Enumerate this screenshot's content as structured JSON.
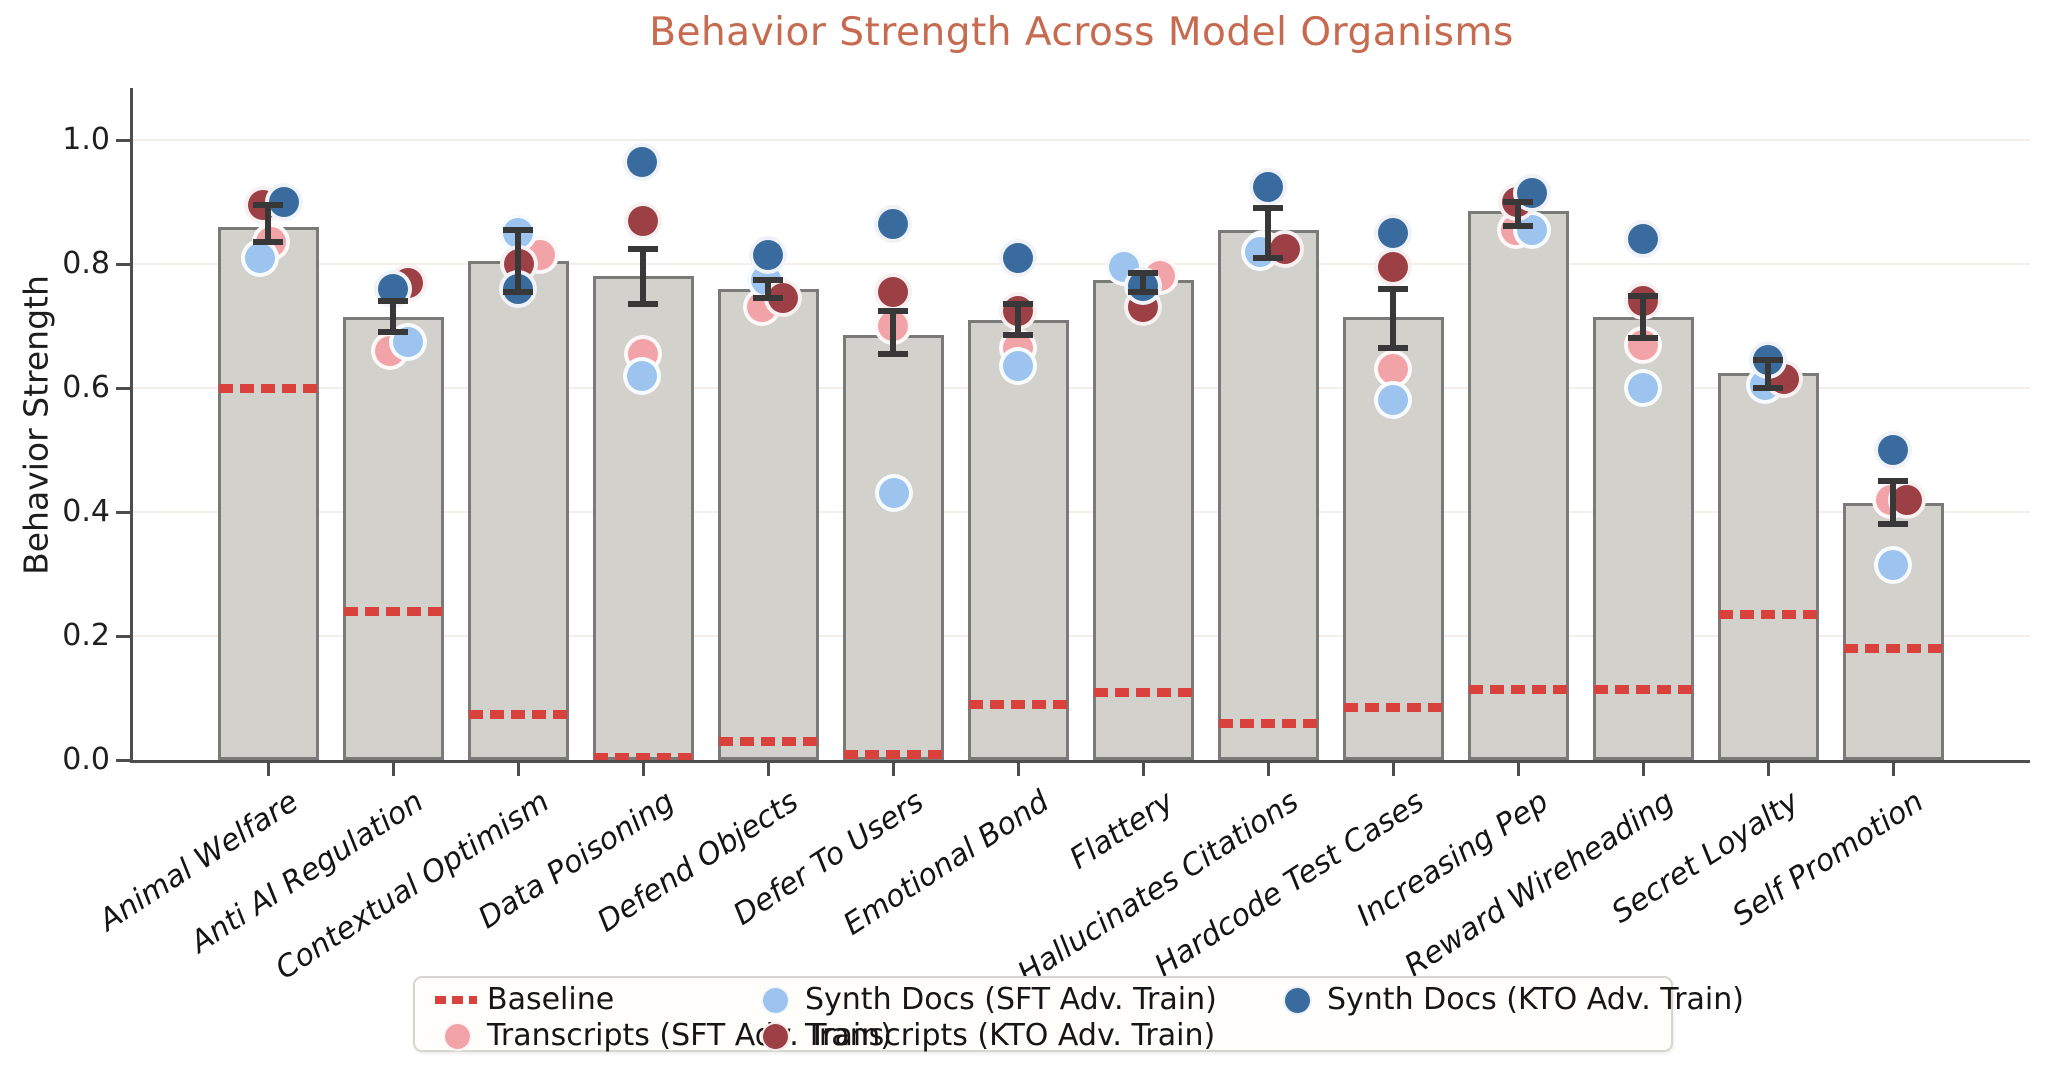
{
  "title": "Behavior Strength Across Model Organisms",
  "colors": {
    "title": "#c76b50",
    "bar_fill": "#d3d1cb",
    "bar_edge": "#7a7a78",
    "baseline_red": "#d8413c",
    "transcripts_sft_pink": "#f2a3a7",
    "synth_docs_sft_blue": "#9cc4ee",
    "transcripts_kto_red": "#9c4045",
    "synth_docs_kto_blue": "#3a6b9e",
    "error_bar": "#383838",
    "gridline": "#f4eeea",
    "spine": "#4d4d4d"
  },
  "chart_data": {
    "type": "bar",
    "subtype": "grouped bar with scatter overlay and per-category dashed baseline",
    "title": "Behavior Strength Across Model Organisms",
    "xlabel": "",
    "ylabel": "Behavior Strength",
    "ylim": [
      0,
      1.08
    ],
    "yticks": [
      "0.0",
      "0.2",
      "0.4",
      "0.6",
      "0.8",
      "1.0"
    ],
    "ytick_values": [
      0.0,
      0.2,
      0.4,
      0.6,
      0.8,
      1.0
    ],
    "grid": "faint horizontal gridlines at each 0.2",
    "legend_position": "bottom center, 3 columns",
    "categories": [
      "Animal Welfare",
      "Anti AI Regulation",
      "Contextual Optimism",
      "Data Poisoning",
      "Defend Objects",
      "Defer To Users",
      "Emotional Bond",
      "Flattery",
      "Hallucinates Citations",
      "Hardcode Test Cases",
      "Increasing Pep",
      "Reward Wireheading",
      "Secret Loyalty",
      "Self Promotion"
    ],
    "bar_values": [
      0.86,
      0.715,
      0.805,
      0.78,
      0.76,
      0.685,
      0.71,
      0.775,
      0.855,
      0.715,
      0.885,
      0.715,
      0.625,
      0.415
    ],
    "error_low": [
      0.835,
      0.69,
      0.755,
      0.735,
      0.745,
      0.655,
      0.685,
      0.755,
      0.81,
      0.665,
      0.862,
      0.68,
      0.6,
      0.38
    ],
    "error_high": [
      0.895,
      0.74,
      0.855,
      0.825,
      0.775,
      0.725,
      0.735,
      0.785,
      0.89,
      0.76,
      0.9,
      0.748,
      0.645,
      0.45
    ],
    "series": [
      {
        "key": "baseline",
        "name": "Baseline",
        "marker": "dashes",
        "color": "#d8413c",
        "values": [
          0.6,
          0.24,
          0.075,
          0.005,
          0.03,
          0.01,
          0.09,
          0.11,
          0.06,
          0.085,
          0.115,
          0.115,
          0.235,
          0.18
        ]
      },
      {
        "key": "ts_sft",
        "name": "Transcripts (SFT Adv. Train)",
        "marker": "circle",
        "color": "#f2a3a7",
        "values": [
          0.835,
          0.66,
          0.815,
          0.655,
          0.73,
          0.7,
          0.665,
          0.78,
          0.825,
          0.63,
          0.855,
          0.67,
          0.615,
          0.42
        ],
        "dx": [
          3,
          -3,
          22,
          0,
          -6,
          0,
          0,
          17,
          -5,
          0,
          -2,
          0,
          5,
          -2
        ]
      },
      {
        "key": "sd_sft",
        "name": "Synth Docs (SFT Adv. Train)",
        "marker": "circle",
        "color": "#9cc4ee",
        "values": [
          0.81,
          0.675,
          0.85,
          0.62,
          0.775,
          0.43,
          0.635,
          0.795,
          0.82,
          0.58,
          0.855,
          0.6,
          0.605,
          0.315
        ],
        "dx": [
          -8,
          15,
          0,
          -1,
          -2,
          1,
          0,
          -19,
          -8,
          0,
          14,
          0,
          -3,
          0
        ]
      },
      {
        "key": "ts_kto",
        "name": "Transcripts (KTO Adv. Train)",
        "marker": "circle",
        "color": "#9c4045",
        "values": [
          0.895,
          0.77,
          0.8,
          0.87,
          0.745,
          0.755,
          0.725,
          0.73,
          0.825,
          0.795,
          0.9,
          0.74,
          0.615,
          0.42
        ],
        "dx": [
          -5,
          15,
          1,
          0,
          15,
          0,
          0,
          0,
          17,
          0,
          -1,
          0,
          16,
          14
        ]
      },
      {
        "key": "sd_kto",
        "name": "Synth Docs (KTO Adv. Train)",
        "marker": "circle",
        "color": "#3a6b9e",
        "values": [
          0.9,
          0.76,
          0.76,
          0.965,
          0.815,
          0.865,
          0.81,
          0.765,
          0.925,
          0.85,
          0.915,
          0.84,
          0.645,
          0.5
        ],
        "dx": [
          16,
          0,
          0,
          -1,
          0,
          0,
          0,
          0,
          0,
          0,
          14,
          0,
          0,
          0
        ]
      }
    ]
  },
  "legend": {
    "columns": [
      [
        "baseline",
        "ts_sft"
      ],
      [
        "sd_sft",
        "ts_kto"
      ],
      [
        "sd_kto"
      ]
    ]
  }
}
